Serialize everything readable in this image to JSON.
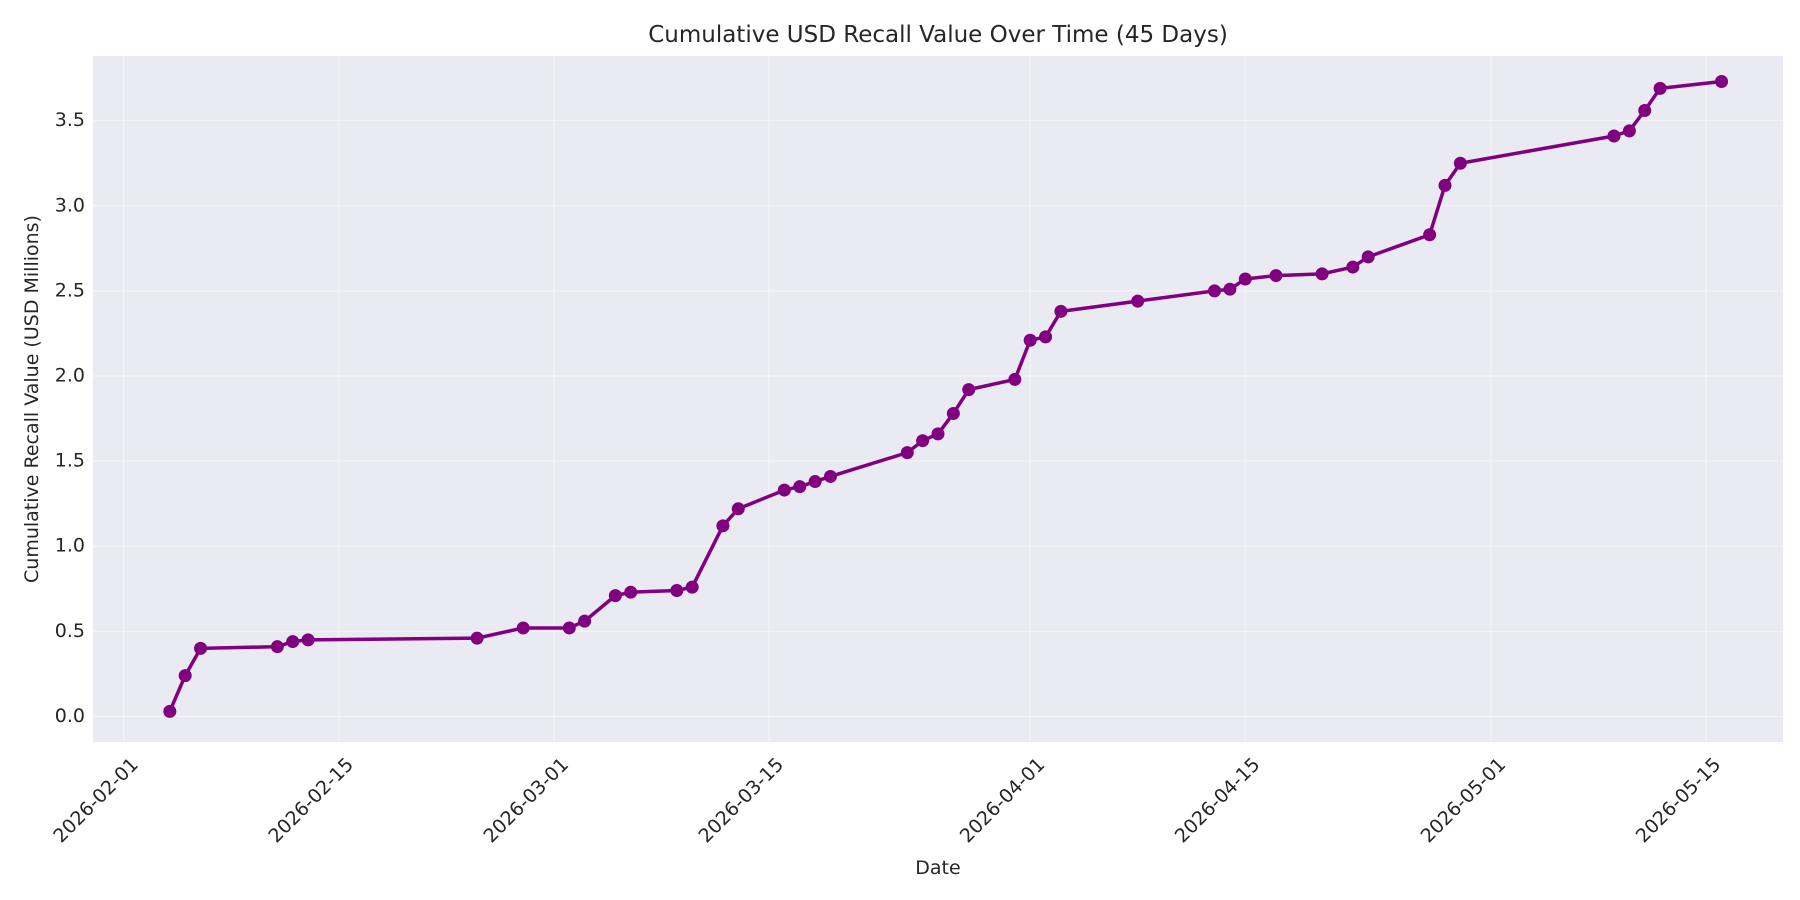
{
  "chart_data": {
    "type": "line",
    "title": "Cumulative USD Recall Value Over Time (45 Days)",
    "xlabel": "Date",
    "ylabel": "Cumulative Recall Value (USD Millions)",
    "x_tick_labels": [
      "2026-02-01",
      "2026-02-15",
      "2026-03-01",
      "2026-03-15",
      "2026-04-01",
      "2026-04-15",
      "2026-05-01",
      "2026-05-15"
    ],
    "y_tick_labels": [
      "0.0",
      "0.5",
      "1.0",
      "1.5",
      "2.0",
      "2.5",
      "3.0",
      "3.5"
    ],
    "xlim": [
      "2026-01-30",
      "2026-05-20"
    ],
    "ylim": [
      -0.15,
      3.88
    ],
    "grid": true,
    "legend": "none",
    "colors": {
      "line": "#800080",
      "marker": "#800080",
      "plot_background": "#eaeaf2",
      "grid": "#ffffff"
    },
    "series": [
      {
        "x": [
          "2026-02-04",
          "2026-02-05",
          "2026-02-06",
          "2026-02-11",
          "2026-02-12",
          "2026-02-13",
          "2026-02-24",
          "2026-02-27",
          "2026-03-02",
          "2026-03-03",
          "2026-03-05",
          "2026-03-06",
          "2026-03-09",
          "2026-03-10",
          "2026-03-12",
          "2026-03-13",
          "2026-03-16",
          "2026-03-17",
          "2026-03-18",
          "2026-03-19",
          "2026-03-24",
          "2026-03-25",
          "2026-03-26",
          "2026-03-27",
          "2026-03-28",
          "2026-03-31",
          "2026-04-01",
          "2026-04-02",
          "2026-04-03",
          "2026-04-08",
          "2026-04-13",
          "2026-04-14",
          "2026-04-15",
          "2026-04-17",
          "2026-04-20",
          "2026-04-22",
          "2026-04-23",
          "2026-04-27",
          "2026-04-28",
          "2026-04-29",
          "2026-05-09",
          "2026-05-10",
          "2026-05-11",
          "2026-05-12",
          "2026-05-16"
        ],
        "y": [
          0.03,
          0.24,
          0.4,
          0.41,
          0.44,
          0.45,
          0.46,
          0.52,
          0.52,
          0.56,
          0.71,
          0.73,
          0.74,
          0.76,
          1.12,
          1.22,
          1.33,
          1.35,
          1.38,
          1.41,
          1.55,
          1.62,
          1.66,
          1.78,
          1.92,
          1.98,
          2.21,
          2.23,
          2.38,
          2.44,
          2.5,
          2.51,
          2.57,
          2.59,
          2.6,
          2.64,
          2.7,
          2.83,
          3.12,
          3.25,
          3.41,
          3.44,
          3.56,
          3.69,
          3.73
        ]
      }
    ]
  }
}
